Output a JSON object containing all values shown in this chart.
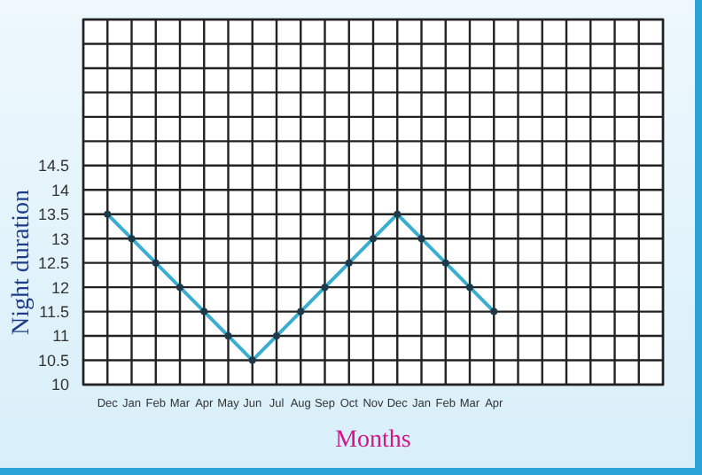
{
  "chart_data": {
    "type": "line",
    "xlabel": "Months",
    "ylabel": "Night duration",
    "categories": [
      "Dec",
      "Jan",
      "Feb",
      "Mar",
      "Apr",
      "May",
      "Jun",
      "Jul",
      "Aug",
      "Sep",
      "Oct",
      "Nov",
      "Dec",
      "Jan",
      "Feb",
      "Mar",
      "Apr",
      null,
      null,
      null,
      null,
      null,
      null
    ],
    "series": [
      {
        "color": "#3aaed0",
        "values": [
          13.5,
          13,
          12.5,
          12,
          11.5,
          11,
          10.5,
          11,
          11.5,
          12,
          12.5,
          13,
          13.5,
          13,
          12.5,
          12,
          11.5,
          null,
          null,
          null,
          null,
          null,
          null
        ]
      }
    ],
    "ylim": [
      10,
      17.5
    ],
    "yticks": [
      10,
      10.5,
      11,
      11.5,
      12,
      12.5,
      13,
      13.5,
      14,
      14.5,
      {
        "value": 15,
        "label": null
      },
      {
        "value": 15.5,
        "label": null
      },
      {
        "value": 16,
        "label": null
      },
      {
        "value": 16.5,
        "label": null
      },
      {
        "value": 17,
        "label": null
      },
      {
        "value": 17.5,
        "label": null
      }
    ],
    "grid": true,
    "marker": "circle",
    "line_style": "solid"
  }
}
